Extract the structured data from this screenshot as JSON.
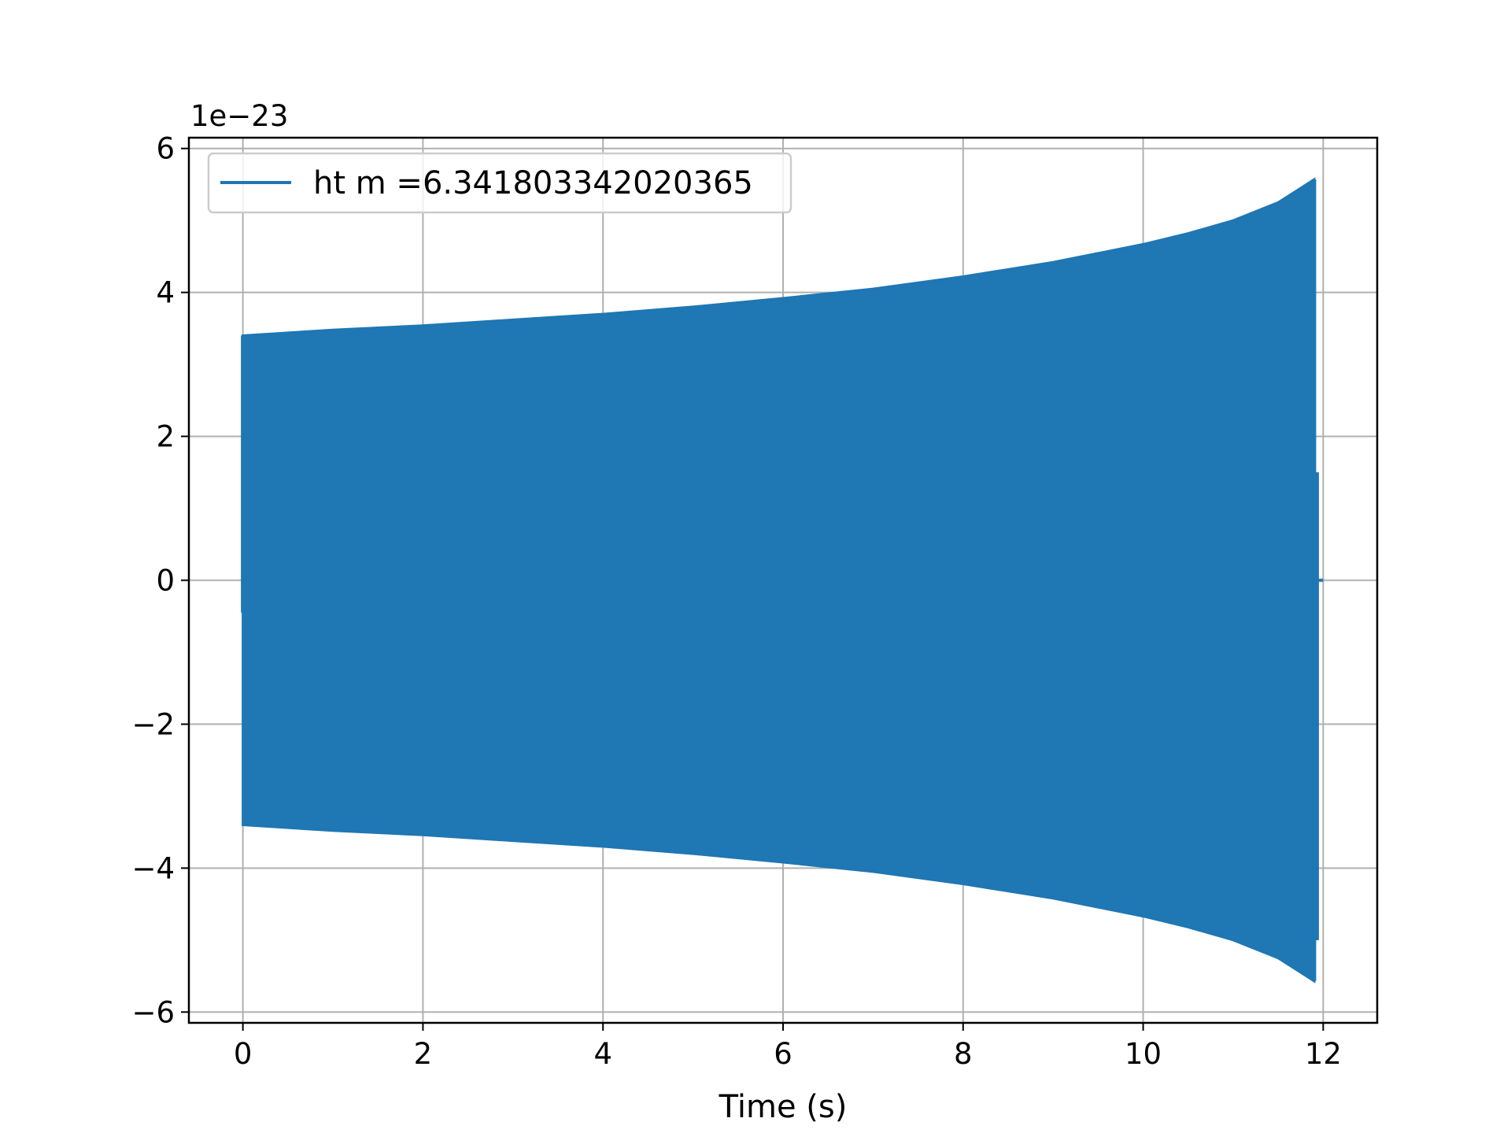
{
  "chart_data": {
    "type": "line",
    "title": "",
    "xlabel": "Time (s)",
    "ylabel": "",
    "y_offset_text": "1e−23",
    "xlim": [
      -0.6,
      12.6
    ],
    "ylim": [
      -6.15,
      6.15
    ],
    "xticks": [
      0,
      2,
      4,
      6,
      8,
      10,
      12
    ],
    "xtick_labels": [
      "0",
      "2",
      "4",
      "6",
      "8",
      "10",
      "12"
    ],
    "yticks": [
      6,
      4,
      2,
      0,
      -2,
      -4,
      -6
    ],
    "ytick_labels": [
      "6",
      "4",
      "2",
      "0",
      "−2",
      "−4",
      "−6"
    ],
    "grid": true,
    "legend_position": "top-left",
    "series": [
      {
        "name": "ht m =6.341803342020365",
        "color": "#1f77b4",
        "style": "dense oscillation (filled envelope)",
        "envelope": {
          "t": [
            0.0,
            1.0,
            2.0,
            3.0,
            4.0,
            5.0,
            6.0,
            7.0,
            8.0,
            9.0,
            10.0,
            10.5,
            11.0,
            11.5,
            11.9
          ],
          "upper": [
            3.4,
            3.48,
            3.54,
            3.62,
            3.7,
            3.8,
            3.92,
            4.05,
            4.22,
            4.42,
            4.67,
            4.82,
            5.0,
            5.25,
            5.57
          ],
          "lower": [
            -3.4,
            -3.48,
            -3.54,
            -3.62,
            -3.7,
            -3.8,
            -3.92,
            -4.05,
            -4.22,
            -4.42,
            -4.67,
            -4.82,
            -5.0,
            -5.25,
            -5.57
          ]
        },
        "tail": {
          "t": [
            11.9,
            11.93,
            12.0
          ],
          "values": [
            1.5,
            0.0,
            0.0
          ]
        }
      }
    ]
  }
}
